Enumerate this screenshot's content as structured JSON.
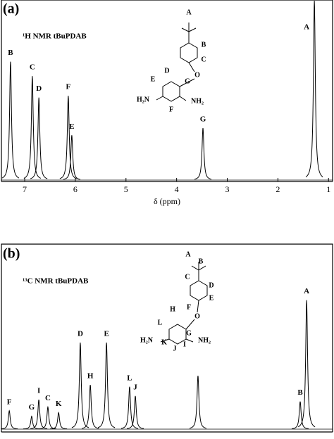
{
  "chart_data": [
    {
      "type": "spectrum",
      "panel_label": "(a)",
      "title": "¹H NMR tBuPDAB",
      "x_label": "δ (ppm)",
      "xlim": [
        7.46,
        0.92
      ],
      "xticks": [
        7,
        6,
        5,
        4,
        3,
        2,
        1
      ],
      "ylim": [
        0,
        100
      ],
      "color": "#000000",
      "categories": [
        "B",
        "C",
        "D",
        "F",
        "E",
        "G",
        "A"
      ],
      "x": [
        7.28,
        6.85,
        6.72,
        6.14,
        6.07,
        3.48,
        1.28
      ],
      "values": [
        66,
        58,
        46,
        47,
        25,
        29,
        100
      ],
      "structure_labels": [
        "A",
        "B",
        "C",
        "O",
        "D",
        "E",
        "G",
        "F",
        "H₂N",
        "NH₂"
      ]
    },
    {
      "type": "spectrum",
      "panel_label": "(b)",
      "title": "¹³C NMR tBuPDAB",
      "xlim": [
        159.5,
        20.5
      ],
      "ylim": [
        0,
        100
      ],
      "color": "#000000",
      "categories": [
        "F",
        "G",
        "I",
        "C",
        "K",
        "D",
        "H",
        "E",
        "L",
        "J",
        null,
        "B",
        "A"
      ],
      "x": [
        156.2,
        146.8,
        143.8,
        140.0,
        135.5,
        126.4,
        122.2,
        115.4,
        105.7,
        103.3,
        77.0,
        34.1,
        31.4
      ],
      "values": [
        10,
        7,
        16,
        12,
        9,
        47,
        24,
        47,
        23,
        18,
        29,
        15,
        70
      ],
      "structure_labels": [
        "A",
        "B",
        "C",
        "D",
        "E",
        "F",
        "O",
        "H",
        "L",
        "G",
        "K",
        "J",
        "I",
        "H₂N",
        "NH₂"
      ]
    }
  ]
}
